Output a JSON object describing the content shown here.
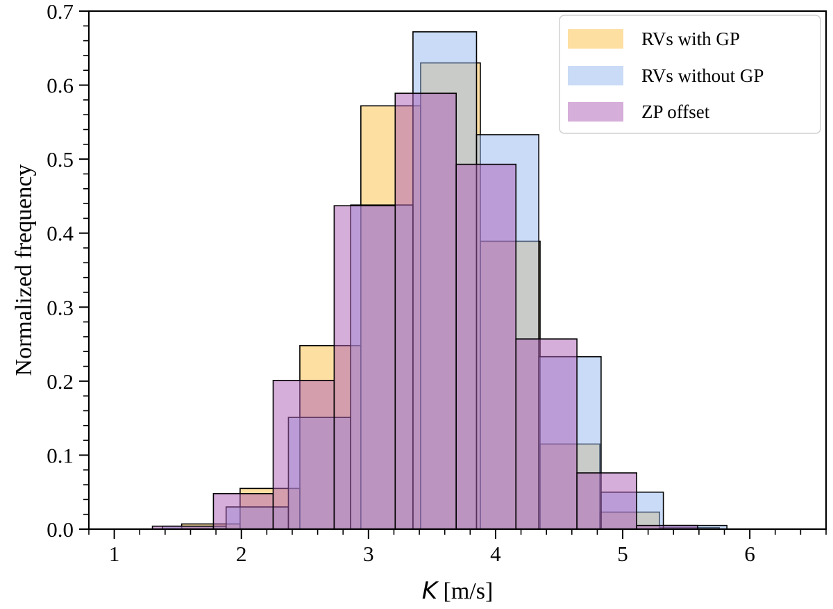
{
  "chart_data": {
    "type": "histogram",
    "title": "",
    "xlabel_symbol": "K",
    "xlabel_unit": " [m/s]",
    "ylabel": "Normalized frequency",
    "xlim": [
      0.8,
      6.6
    ],
    "ylim": [
      0,
      0.7
    ],
    "xticks": [
      1,
      2,
      3,
      4,
      5,
      6
    ],
    "yticks": [
      "0.0",
      "0.1",
      "0.2",
      "0.3",
      "0.4",
      "0.5",
      "0.6",
      "0.7"
    ],
    "legend_position": "top-right",
    "series": [
      {
        "name": "RVs with GP",
        "color": "#fbbf45",
        "edges": [
          1.53,
          1.99,
          2.46,
          2.94,
          3.41,
          3.88,
          4.35,
          4.82,
          5.29,
          5.76
        ],
        "values": [
          0.007,
          0.055,
          0.248,
          0.572,
          0.63,
          0.389,
          0.115,
          0.023,
          0.002
        ]
      },
      {
        "name": "RVs without GP",
        "color": "#93b8ee",
        "edges": [
          1.38,
          1.88,
          2.37,
          2.86,
          3.35,
          3.85,
          4.34,
          4.83,
          5.32,
          5.82
        ],
        "values": [
          0.004,
          0.03,
          0.151,
          0.438,
          0.672,
          0.533,
          0.233,
          0.05,
          0.005
        ]
      },
      {
        "name": "ZP offset",
        "color": "#ad5db6",
        "edges": [
          1.3,
          1.78,
          2.25,
          2.73,
          3.21,
          3.69,
          4.16,
          4.64,
          5.11,
          5.59
        ],
        "values": [
          0.004,
          0.048,
          0.201,
          0.437,
          0.589,
          0.493,
          0.257,
          0.076,
          0.005
        ]
      }
    ]
  }
}
